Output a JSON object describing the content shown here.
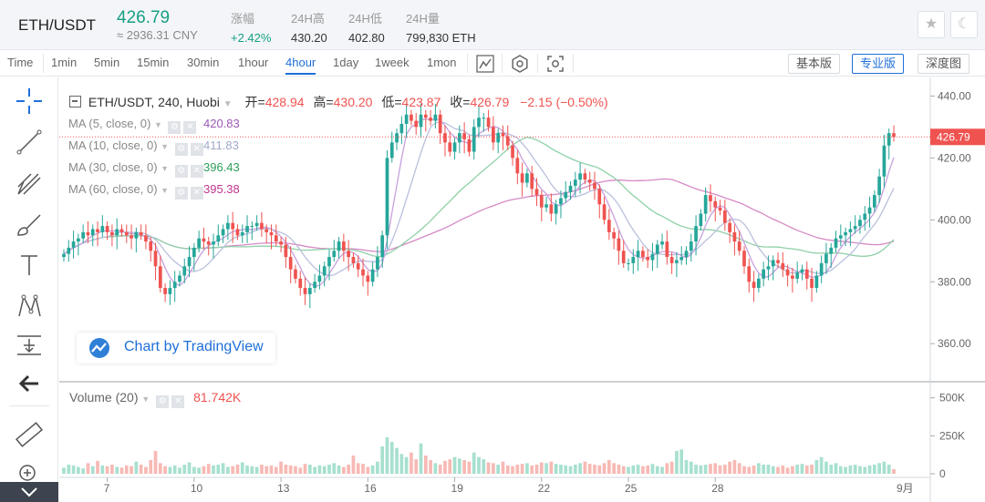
{
  "header": {
    "pair": "ETH/USDT",
    "price": "426.79",
    "cny": "≈ 2936.31 CNY",
    "stats": [
      {
        "label": "涨幅",
        "value": "+2.42%"
      },
      {
        "label": "24H高",
        "value": "430.20"
      },
      {
        "label": "24H低",
        "value": "402.80"
      },
      {
        "label": "24H量",
        "value": "799,830 ETH"
      }
    ]
  },
  "toolbar": {
    "timeframes": [
      "Time",
      "1min",
      "5min",
      "15min",
      "30min",
      "1hour",
      "4hour",
      "1day",
      "1week",
      "1mon"
    ],
    "active": "4hour",
    "views": [
      "基本版",
      "专业版",
      "深度图"
    ],
    "active_view": "专业版"
  },
  "legend": {
    "symbol": "ETH/USDT, 240, Huobi",
    "open_label": "开=",
    "open": "428.94",
    "high_label": "高=",
    "high": "430.20",
    "low_label": "低=",
    "low": "423.87",
    "close_label": "收=",
    "close": "426.79",
    "change": "−2.15 (−0.50%)"
  },
  "ma": [
    {
      "label": "MA (5, close, 0)",
      "value": "420.83",
      "color": "#9b59b6"
    },
    {
      "label": "MA (10, close, 0)",
      "value": "411.83",
      "color": "#a0a9c8"
    },
    {
      "label": "MA (30, close, 0)",
      "value": "396.43",
      "color": "#2e9e5b"
    },
    {
      "label": "MA (60, close, 0)",
      "value": "395.38",
      "color": "#c2338f"
    }
  ],
  "volume": {
    "label": "Volume (20)",
    "value": "81.742K"
  },
  "watermark": "Chart by TradingView",
  "colors": {
    "up": "#26a69a",
    "down": "#ef5350",
    "up_vol": "#a7e0cf",
    "down_vol": "#f7b9b4"
  },
  "chart_data": {
    "type": "candlestick",
    "price_axis": {
      "ticks": [
        360,
        380,
        400,
        420,
        440
      ],
      "labels": [
        "360.00",
        "380.00",
        "400.00",
        "420.00",
        "440.00"
      ],
      "ylim": [
        348,
        446
      ],
      "last": "426.79"
    },
    "volume_axis": {
      "ticks": [
        0,
        250000,
        500000
      ],
      "labels": [
        "0",
        "250K",
        "500K"
      ],
      "ylim": [
        0,
        570000
      ]
    },
    "x_axis": {
      "ticks": [
        7,
        10,
        13,
        16,
        19,
        22,
        25,
        28
      ],
      "labels": [
        "7",
        "10",
        "13",
        "16",
        "19",
        "22",
        "25",
        "28"
      ],
      "month_label": "9月"
    },
    "close": [
      389,
      391,
      393,
      394,
      396,
      395,
      397,
      396,
      398,
      396,
      395,
      397,
      396,
      395,
      394,
      396,
      395,
      393,
      390,
      385,
      378,
      376,
      378,
      380,
      382,
      385,
      388,
      391,
      394,
      393,
      392,
      393,
      395,
      397,
      399,
      397,
      395,
      396,
      398,
      398,
      399,
      397,
      396,
      395,
      393,
      392,
      388,
      384,
      381,
      378,
      376,
      378,
      380,
      382,
      385,
      388,
      390,
      393,
      390,
      388,
      386,
      384,
      382,
      380,
      384,
      388,
      395,
      420,
      425,
      428,
      431,
      434,
      432,
      430,
      434,
      433,
      432,
      434,
      428,
      425,
      422,
      425,
      428,
      426,
      422,
      430,
      433,
      433,
      430,
      425,
      428,
      427,
      424,
      420,
      415,
      412,
      415,
      410,
      408,
      404,
      405,
      402,
      405,
      407,
      409,
      411,
      413,
      415,
      413,
      412,
      410,
      405,
      400,
      396,
      394,
      390,
      386,
      386,
      388,
      390,
      388,
      387,
      389,
      392,
      393,
      388,
      386,
      387,
      388,
      390,
      393,
      398,
      402,
      408,
      406,
      404,
      403,
      399,
      396,
      393,
      390,
      385,
      380,
      378,
      381,
      384,
      385,
      387,
      386,
      384,
      382,
      381,
      383,
      384,
      381,
      378,
      382,
      386,
      389,
      391,
      394,
      395,
      396,
      397,
      398,
      400,
      402,
      404,
      408,
      414,
      424,
      428,
      426.79
    ],
    "volume": [
      40,
      60,
      55,
      45,
      35,
      70,
      50,
      85,
      55,
      50,
      60,
      45,
      40,
      55,
      50,
      80,
      60,
      45,
      90,
      150,
      70,
      50,
      45,
      55,
      40,
      60,
      75,
      45,
      40,
      50,
      65,
      55,
      60,
      70,
      45,
      50,
      60,
      75,
      55,
      50,
      45,
      60,
      50,
      55,
      45,
      80,
      60,
      55,
      50,
      40,
      65,
      60,
      45,
      55,
      50,
      60,
      70,
      55,
      45,
      60,
      120,
      70,
      65,
      45,
      55,
      80,
      180,
      240,
      210,
      170,
      130,
      110,
      140,
      95,
      200,
      120,
      90,
      70,
      60,
      85,
      95,
      110,
      100,
      90,
      80,
      140,
      110,
      95,
      75,
      70,
      60,
      80,
      55,
      50,
      60,
      65,
      70,
      55,
      60,
      75,
      70,
      80,
      65,
      60,
      55,
      50,
      60,
      70,
      80,
      65,
      60,
      55,
      70,
      90,
      70,
      60,
      50,
      45,
      55,
      60,
      50,
      55,
      65,
      50,
      45,
      70,
      80,
      150,
      160,
      90,
      80,
      60,
      55,
      60,
      65,
      70,
      55,
      60,
      80,
      90,
      70,
      50,
      45,
      55,
      70,
      60,
      60,
      50,
      45,
      55,
      40,
      50,
      60,
      65,
      55,
      60,
      90,
      110,
      80,
      60,
      70,
      50,
      45,
      55,
      60,
      50,
      45,
      55,
      60,
      70,
      80,
      60,
      30
    ]
  }
}
